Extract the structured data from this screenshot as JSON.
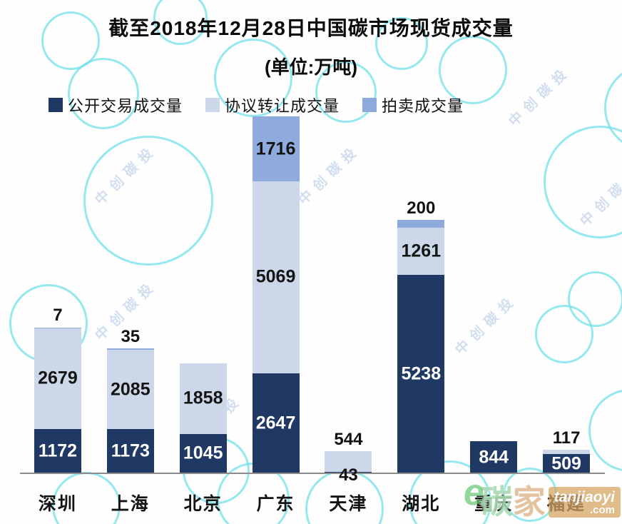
{
  "title": {
    "line1": "截至2018年12月28日中国碳市场现货成交量",
    "line2": "(单位:万吨)"
  },
  "legend": [
    {
      "key": "public",
      "label": "公开交易成交量",
      "color": "#1F3864"
    },
    {
      "key": "agreement",
      "label": "协议转让成交量",
      "color": "#CCD8EA"
    },
    {
      "key": "auction",
      "label": "拍卖成交量",
      "color": "#8FAADC"
    }
  ],
  "chart_data": {
    "type": "bar",
    "stacked": true,
    "title": "截至2018年12月28日中国碳市场现货成交量",
    "unit": "万吨",
    "legend_position": "top-left",
    "grid": false,
    "categories": [
      "深圳",
      "上海",
      "北京",
      "广东",
      "天津",
      "湖北",
      "重庆",
      "福建"
    ],
    "series": [
      {
        "name": "公开交易成交量",
        "values": [
          1172,
          1173,
          1045,
          2647,
          43,
          5238,
          844,
          509
        ]
      },
      {
        "name": "协议转让成交量",
        "values": [
          2679,
          2085,
          1858,
          5069,
          544,
          1261,
          0,
          117
        ]
      },
      {
        "name": "拍卖成交量",
        "values": [
          7,
          35,
          0,
          1716,
          0,
          200,
          0,
          0
        ]
      }
    ],
    "colors": {
      "public": "#1F3864",
      "agreement": "#CCD8EA",
      "auction": "#8FAADC"
    },
    "bars": [
      {
        "id": "shenzhen",
        "category": "深圳",
        "segments": [
          {
            "series": "public",
            "value": 1172,
            "label": "inside-light"
          },
          {
            "series": "agreement",
            "value": 2679,
            "label": "inside-dark"
          },
          {
            "series": "auction",
            "value": 7,
            "label": "above"
          }
        ]
      },
      {
        "id": "shanghai",
        "category": "上海",
        "segments": [
          {
            "series": "public",
            "value": 1173,
            "label": "inside-light"
          },
          {
            "series": "agreement",
            "value": 2085,
            "label": "inside-dark"
          },
          {
            "series": "auction",
            "value": 35,
            "label": "above"
          }
        ]
      },
      {
        "id": "beijing",
        "category": "北京",
        "segments": [
          {
            "series": "public",
            "value": 1045,
            "label": "inside-light"
          },
          {
            "series": "agreement",
            "value": 1858,
            "label": "inside-dark"
          }
        ]
      },
      {
        "id": "guangdong",
        "category": "广东",
        "segments": [
          {
            "series": "public",
            "value": 2647,
            "label": "inside-light"
          },
          {
            "series": "agreement",
            "value": 5069,
            "label": "inside-dark"
          },
          {
            "series": "auction",
            "value": 1716,
            "label": "inside-dark"
          }
        ]
      },
      {
        "id": "tianjin",
        "category": "天津",
        "segments": [
          {
            "series": "public",
            "value": 43,
            "label": "axis"
          },
          {
            "series": "agreement",
            "value": 544,
            "label": "above"
          }
        ]
      },
      {
        "id": "hubei",
        "category": "湖北",
        "segments": [
          {
            "series": "public",
            "value": 5238,
            "label": "inside-light"
          },
          {
            "series": "agreement",
            "value": 1261,
            "label": "inside-dark"
          },
          {
            "series": "auction",
            "value": 200,
            "label": "above"
          }
        ]
      },
      {
        "id": "chongqing",
        "category": "重庆",
        "segments": [
          {
            "series": "public",
            "value": 844,
            "label": "inside-light"
          }
        ]
      },
      {
        "id": "fujian",
        "category": "福建",
        "segments": [
          {
            "series": "public",
            "value": 509,
            "label": "inside-light"
          },
          {
            "series": "agreement",
            "value": 117,
            "label": "above"
          }
        ]
      }
    ]
  },
  "background_watermark": {
    "text": "中创碳投"
  },
  "site_logo": {
    "brand_char1": "碳",
    "brand_char2": "家",
    "domain": "tanjiaoyi",
    "tld": ".com"
  }
}
